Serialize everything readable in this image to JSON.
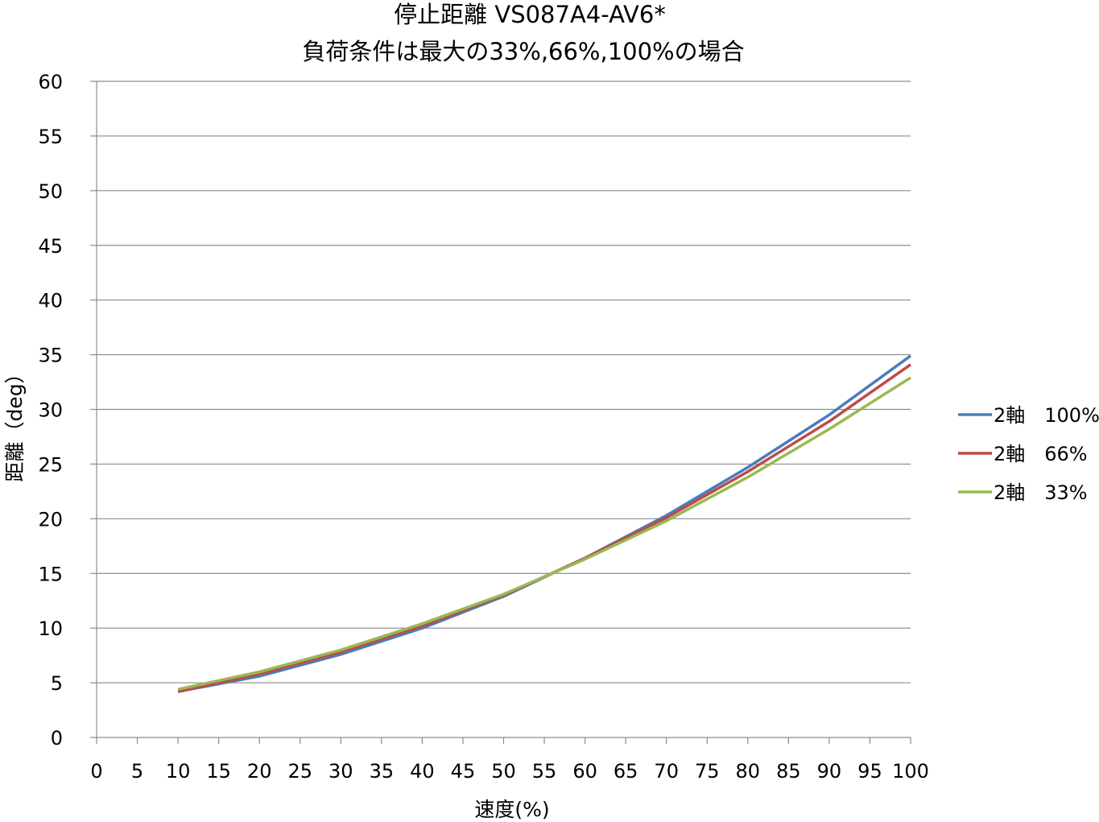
{
  "chart_data": {
    "type": "line",
    "title": [
      "停止距離 VS087A4-AV6*",
      "負荷条件は最大の33%,66%,100%の場合"
    ],
    "xlabel": "速度(%)",
    "ylabel": "距離（deg）",
    "xlim": [
      0,
      100
    ],
    "ylim": [
      0,
      60
    ],
    "xticks": [
      0,
      5,
      10,
      15,
      20,
      25,
      30,
      35,
      40,
      45,
      50,
      55,
      60,
      65,
      70,
      75,
      80,
      85,
      90,
      95,
      100
    ],
    "yticks": [
      0,
      5,
      10,
      15,
      20,
      25,
      30,
      35,
      40,
      45,
      50,
      55,
      60
    ],
    "grid": "horizontal",
    "legend_position": "right",
    "x": [
      10,
      20,
      30,
      40,
      50,
      60,
      70,
      80,
      90,
      100
    ],
    "series": [
      {
        "name": "2軸　100%",
        "color": "#4a7ebb",
        "values": [
          4.2,
          5.6,
          7.6,
          10.0,
          12.9,
          16.4,
          20.3,
          24.7,
          29.5,
          34.9
        ]
      },
      {
        "name": "2軸　66%",
        "color": "#be4b48",
        "values": [
          4.2,
          5.8,
          7.8,
          10.2,
          13.0,
          16.4,
          20.1,
          24.3,
          28.9,
          34.1
        ]
      },
      {
        "name": "2軸　33%",
        "color": "#98b954",
        "values": [
          4.4,
          6.0,
          8.0,
          10.4,
          13.1,
          16.3,
          19.8,
          23.8,
          28.2,
          32.9
        ]
      }
    ]
  }
}
